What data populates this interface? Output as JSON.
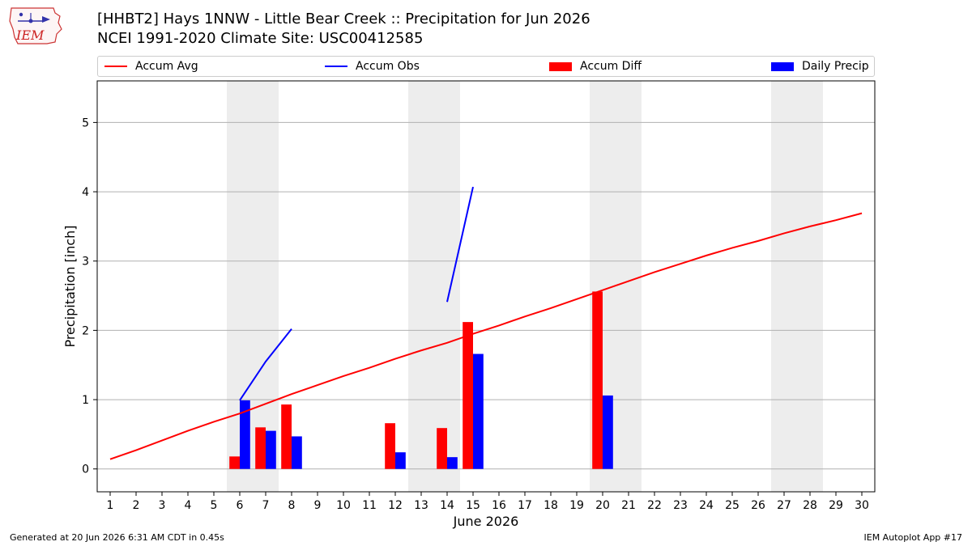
{
  "header": {
    "title_line1": "[HHBT2] Hays 1NNW - Little Bear Creek :: Precipitation for Jun 2026",
    "title_line2": "NCEI 1991-2020 Climate Site: USC00412585",
    "logo_text": "IEM"
  },
  "footer": {
    "generated": "Generated at 20 Jun 2026 6:31 AM CDT in 0.45s",
    "app": "IEM Autoplot App #17"
  },
  "colors": {
    "accum_avg": "#ff0000",
    "accum_obs": "#0000ff",
    "accum_diff": "#ff0000",
    "daily_precip": "#0000ff",
    "weekend_shade": "#ededed",
    "grid": "#b0b0b0"
  },
  "chart_data": {
    "type": "bar",
    "xlabel": "June 2026",
    "ylabel": "Precipitation [inch]",
    "ylim": [
      -0.33,
      5.6
    ],
    "yticks": [
      0,
      1,
      2,
      3,
      4,
      5
    ],
    "xticks": [
      1,
      2,
      3,
      4,
      5,
      6,
      7,
      8,
      9,
      10,
      11,
      12,
      13,
      14,
      15,
      16,
      17,
      18,
      19,
      20,
      21,
      22,
      23,
      24,
      25,
      26,
      27,
      28,
      29,
      30
    ],
    "grid": "horizontal",
    "legend_placement": "top",
    "legend": [
      "Accum Avg",
      "Accum Obs",
      "Accum Diff",
      "Daily Precip"
    ],
    "weekends": [
      [
        6,
        7
      ],
      [
        13,
        14
      ],
      [
        20,
        21
      ],
      [
        27,
        28
      ]
    ],
    "series": [
      {
        "name": "Accum Avg",
        "kind": "line",
        "x": [
          1,
          2,
          3,
          4,
          5,
          6,
          7,
          8,
          9,
          10,
          11,
          12,
          13,
          14,
          15,
          16,
          17,
          18,
          19,
          20,
          21,
          22,
          23,
          24,
          25,
          26,
          27,
          28,
          29,
          30
        ],
        "values": [
          0.14,
          0.27,
          0.41,
          0.55,
          0.68,
          0.8,
          0.94,
          1.08,
          1.21,
          1.34,
          1.46,
          1.59,
          1.71,
          1.82,
          1.95,
          2.07,
          2.2,
          2.32,
          2.45,
          2.58,
          2.71,
          2.84,
          2.96,
          3.08,
          3.19,
          3.29,
          3.4,
          3.5,
          3.59,
          3.69
        ]
      },
      {
        "name": "Accum Obs",
        "kind": "line",
        "segments": [
          {
            "x": [
              6,
              7,
              8
            ],
            "values": [
              0.99,
              1.55,
              2.02
            ]
          },
          {
            "x": [
              14,
              15
            ],
            "values": [
              2.41,
              4.07
            ]
          }
        ]
      },
      {
        "name": "Accum Diff",
        "kind": "bar",
        "x": [
          6,
          7,
          8,
          12,
          14,
          15,
          20
        ],
        "values": [
          0.18,
          0.6,
          0.93,
          0.66,
          0.59,
          2.12,
          2.56
        ]
      },
      {
        "name": "Daily Precip",
        "kind": "bar",
        "x": [
          6,
          7,
          8,
          12,
          14,
          15,
          20
        ],
        "values": [
          0.99,
          0.55,
          0.47,
          0.24,
          0.17,
          1.66,
          1.06
        ]
      }
    ]
  }
}
